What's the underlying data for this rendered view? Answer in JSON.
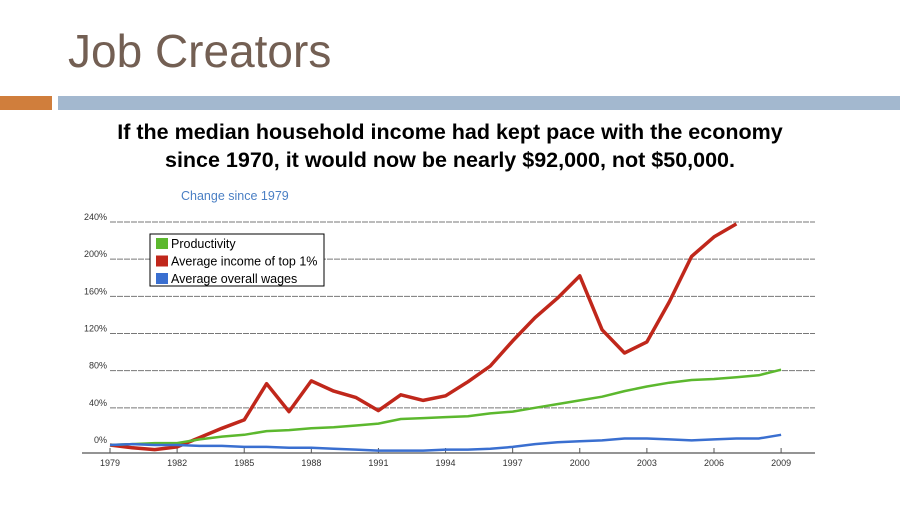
{
  "slide": {
    "title": "Job Creators",
    "subtitle_line1": "If the median household income had kept pace with the economy",
    "subtitle_line2": "since 1970, it would now be nearly $92,000, not $50,000.",
    "accent_color": "#d07e3c",
    "bar_color": "#a3b8cf"
  },
  "chart_data": {
    "type": "line",
    "title": "Change since 1979",
    "xlabel": "",
    "ylabel": "",
    "x_ticks": [
      "1979",
      "1982",
      "1985",
      "1988",
      "1991",
      "1994",
      "1997",
      "2000",
      "2003",
      "2006",
      "2009"
    ],
    "y_ticks": [
      "0%",
      "40%",
      "80%",
      "120%",
      "160%",
      "200%",
      "240%"
    ],
    "ylim": [
      0,
      240
    ],
    "grid": true,
    "legend_placement": "top-left",
    "series": [
      {
        "name": "Productivity",
        "color": "#5cb82e",
        "x": [
          1979,
          1980,
          1981,
          1982,
          1983,
          1984,
          1985,
          1986,
          1987,
          1988,
          1989,
          1990,
          1991,
          1992,
          1993,
          1994,
          1995,
          1996,
          1997,
          1998,
          1999,
          2000,
          2001,
          2002,
          2003,
          2004,
          2005,
          2006,
          2007,
          2008,
          2009
        ],
        "values": [
          0,
          1,
          2,
          2,
          6,
          9,
          11,
          15,
          16,
          18,
          19,
          21,
          23,
          28,
          29,
          30,
          31,
          34,
          36,
          40,
          44,
          48,
          52,
          58,
          63,
          67,
          70,
          71,
          73,
          75,
          81
        ]
      },
      {
        "name": "Average income of top 1%",
        "color": "#c0271b",
        "x": [
          1979,
          1980,
          1981,
          1982,
          1983,
          1984,
          1985,
          1986,
          1987,
          1988,
          1989,
          1990,
          1991,
          1992,
          1993,
          1994,
          1995,
          1996,
          1997,
          1998,
          1999,
          2000,
          2001,
          2002,
          2003,
          2004,
          2005,
          2006,
          2007
        ],
        "values": [
          0,
          -3,
          -5,
          -2,
          8,
          18,
          27,
          66,
          36,
          69,
          58,
          51,
          37,
          54,
          48,
          53,
          68,
          85,
          112,
          137,
          158,
          182,
          124,
          99,
          111,
          154,
          203,
          224,
          238
        ]
      },
      {
        "name": "Average overall wages",
        "color": "#3a6fd0",
        "x": [
          1979,
          1980,
          1981,
          1982,
          1983,
          1984,
          1985,
          1986,
          1987,
          1988,
          1989,
          1990,
          1991,
          1992,
          1993,
          1994,
          1995,
          1996,
          1997,
          1998,
          1999,
          2000,
          2001,
          2002,
          2003,
          2004,
          2005,
          2006,
          2007,
          2008,
          2009
        ],
        "values": [
          0,
          1,
          0,
          0,
          -1,
          -1,
          -2,
          -2,
          -3,
          -3,
          -4,
          -5,
          -6,
          -6,
          -6,
          -5,
          -5,
          -4,
          -2,
          1,
          3,
          4,
          5,
          7,
          7,
          6,
          5,
          6,
          7,
          7,
          11
        ]
      }
    ]
  }
}
